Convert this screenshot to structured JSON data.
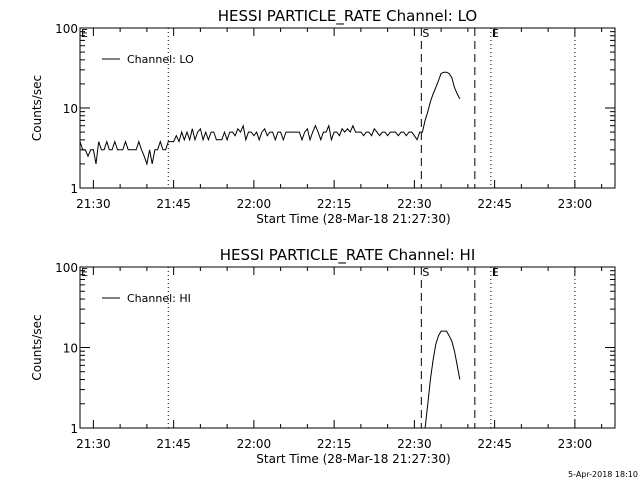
{
  "footer": {
    "timestamp": "5-Apr-2018 18:10"
  },
  "chart_data": [
    {
      "type": "line",
      "title": "HESSI PARTICLE_RATE Channel: LO",
      "xlabel": "Start Time (28-Mar-18 21:27:30)",
      "ylabel": "Counts/sec",
      "y_scale": "log",
      "ylim": [
        1,
        100
      ],
      "y_ticks": [
        "1",
        "10",
        "100"
      ],
      "x_unit": "minutes since 21:27:30",
      "xlim": [
        0,
        100
      ],
      "x_ticks": [
        {
          "label": "21:30",
          "value": 2.5
        },
        {
          "label": "21:45",
          "value": 17.5
        },
        {
          "label": "22:00",
          "value": 32.5
        },
        {
          "label": "22:15",
          "value": 47.5
        },
        {
          "label": "22:30",
          "value": 62.5
        },
        {
          "label": "22:45",
          "value": 77.5
        },
        {
          "label": "23:00",
          "value": 92.5
        }
      ],
      "legend": {
        "label": "Channel: LO",
        "position": "top-left"
      },
      "markers": [
        {
          "label": "E",
          "x": 0,
          "style": "none"
        },
        {
          "label": "",
          "x": 16.5,
          "style": "dotted"
        },
        {
          "label": "S",
          "x": 63.8,
          "style": "dashed"
        },
        {
          "label": "",
          "x": 73.8,
          "style": "dashed"
        },
        {
          "label": "E",
          "x": 76.8,
          "style": "dotted"
        },
        {
          "label": "",
          "x": 92.5,
          "style": "dotted"
        }
      ],
      "series": [
        {
          "name": "Channel: LO",
          "points": [
            [
              0.0,
              3.8
            ],
            [
              0.5,
              3.0
            ],
            [
              1.0,
              3.0
            ],
            [
              1.5,
              2.5
            ],
            [
              2.0,
              3.0
            ],
            [
              2.5,
              3.0
            ],
            [
              3.0,
              2.0
            ],
            [
              3.5,
              3.8
            ],
            [
              4.0,
              3.0
            ],
            [
              4.5,
              3.0
            ],
            [
              5.0,
              3.8
            ],
            [
              5.5,
              3.0
            ],
            [
              6.0,
              3.0
            ],
            [
              6.5,
              3.8
            ],
            [
              7.0,
              3.0
            ],
            [
              7.5,
              3.0
            ],
            [
              8.0,
              3.0
            ],
            [
              8.5,
              3.8
            ],
            [
              9.0,
              3.0
            ],
            [
              9.5,
              3.0
            ],
            [
              10.0,
              3.0
            ],
            [
              10.5,
              3.0
            ],
            [
              11.0,
              3.8
            ],
            [
              11.5,
              3.0
            ],
            [
              12.0,
              2.5
            ],
            [
              12.5,
              2.0
            ],
            [
              13.0,
              3.0
            ],
            [
              13.5,
              2.0
            ],
            [
              14.0,
              3.0
            ],
            [
              14.5,
              3.0
            ],
            [
              15.0,
              3.8
            ],
            [
              15.5,
              3.0
            ],
            [
              16.0,
              3.0
            ],
            [
              16.5,
              3.8
            ],
            [
              17.0,
              3.8
            ],
            [
              17.5,
              3.8
            ],
            [
              18.0,
              4.5
            ],
            [
              18.5,
              3.8
            ],
            [
              19.0,
              5.0
            ],
            [
              19.5,
              4.0
            ],
            [
              20.0,
              5.0
            ],
            [
              20.5,
              4.0
            ],
            [
              21.0,
              5.5
            ],
            [
              21.5,
              4.0
            ],
            [
              22.0,
              5.0
            ],
            [
              22.5,
              5.5
            ],
            [
              23.0,
              4.0
            ],
            [
              23.5,
              5.0
            ],
            [
              24.0,
              4.0
            ],
            [
              24.5,
              5.0
            ],
            [
              25.0,
              5.0
            ],
            [
              25.5,
              4.0
            ],
            [
              26.0,
              4.0
            ],
            [
              26.5,
              4.0
            ],
            [
              27.0,
              5.0
            ],
            [
              27.5,
              4.0
            ],
            [
              28.0,
              5.0
            ],
            [
              28.5,
              5.0
            ],
            [
              29.0,
              4.5
            ],
            [
              29.5,
              5.5
            ],
            [
              30.0,
              5.0
            ],
            [
              30.5,
              6.0
            ],
            [
              31.0,
              4.0
            ],
            [
              31.5,
              5.0
            ],
            [
              32.0,
              5.0
            ],
            [
              32.5,
              4.5
            ],
            [
              33.0,
              5.0
            ],
            [
              33.5,
              4.0
            ],
            [
              34.0,
              5.0
            ],
            [
              34.5,
              5.5
            ],
            [
              35.0,
              4.5
            ],
            [
              35.5,
              5.0
            ],
            [
              36.0,
              5.0
            ],
            [
              36.5,
              4.0
            ],
            [
              37.0,
              5.0
            ],
            [
              37.5,
              5.0
            ],
            [
              38.0,
              4.0
            ],
            [
              38.5,
              5.0
            ],
            [
              39.0,
              5.0
            ],
            [
              39.5,
              5.0
            ],
            [
              40.0,
              5.0
            ],
            [
              40.5,
              5.0
            ],
            [
              41.0,
              5.0
            ],
            [
              41.5,
              4.0
            ],
            [
              42.0,
              5.0
            ],
            [
              42.5,
              5.5
            ],
            [
              43.0,
              4.0
            ],
            [
              43.5,
              5.0
            ],
            [
              44.0,
              6.0
            ],
            [
              44.5,
              5.0
            ],
            [
              45.0,
              4.0
            ],
            [
              45.5,
              5.0
            ],
            [
              46.0,
              5.0
            ],
            [
              46.5,
              6.0
            ],
            [
              47.0,
              4.0
            ],
            [
              47.5,
              5.0
            ],
            [
              48.0,
              5.0
            ],
            [
              48.5,
              4.5
            ],
            [
              49.0,
              5.5
            ],
            [
              49.5,
              5.0
            ],
            [
              50.0,
              5.5
            ],
            [
              50.5,
              5.0
            ],
            [
              51.0,
              6.0
            ],
            [
              51.5,
              5.0
            ],
            [
              52.0,
              5.0
            ],
            [
              52.5,
              5.0
            ],
            [
              53.0,
              4.5
            ],
            [
              53.5,
              5.0
            ],
            [
              54.0,
              5.0
            ],
            [
              54.5,
              4.5
            ],
            [
              55.0,
              5.5
            ],
            [
              55.5,
              5.0
            ],
            [
              56.0,
              4.5
            ],
            [
              56.5,
              5.0
            ],
            [
              57.0,
              5.0
            ],
            [
              57.5,
              4.5
            ],
            [
              58.0,
              5.0
            ],
            [
              58.5,
              5.0
            ],
            [
              59.0,
              5.0
            ],
            [
              59.5,
              4.5
            ],
            [
              60.0,
              5.0
            ],
            [
              60.5,
              5.0
            ],
            [
              61.0,
              4.5
            ],
            [
              61.5,
              5.0
            ],
            [
              62.0,
              5.0
            ],
            [
              62.5,
              4.5
            ],
            [
              63.0,
              4.0
            ],
            [
              63.5,
              5.0
            ],
            [
              64.0,
              5.0
            ],
            [
              64.5,
              7.0
            ],
            [
              65.0,
              9.0
            ],
            [
              65.5,
              12.0
            ],
            [
              66.0,
              15.0
            ],
            [
              66.5,
              18.0
            ],
            [
              67.0,
              22.0
            ],
            [
              67.5,
              27.0
            ],
            [
              68.0,
              28.0
            ],
            [
              68.5,
              28.0
            ],
            [
              69.0,
              27.0
            ],
            [
              69.5,
              24.0
            ],
            [
              70.0,
              18.0
            ],
            [
              70.5,
              15.0
            ],
            [
              71.0,
              13.0
            ]
          ]
        }
      ]
    },
    {
      "type": "line",
      "title": "HESSI PARTICLE_RATE Channel: HI",
      "xlabel": "Start Time (28-Mar-18 21:27:30)",
      "ylabel": "Counts/sec",
      "y_scale": "log",
      "ylim": [
        1,
        100
      ],
      "y_ticks": [
        "1",
        "10",
        "100"
      ],
      "x_unit": "minutes since 21:27:30",
      "xlim": [
        0,
        100
      ],
      "x_ticks": [
        {
          "label": "21:30",
          "value": 2.5
        },
        {
          "label": "21:45",
          "value": 17.5
        },
        {
          "label": "22:00",
          "value": 32.5
        },
        {
          "label": "22:15",
          "value": 47.5
        },
        {
          "label": "22:30",
          "value": 62.5
        },
        {
          "label": "22:45",
          "value": 77.5
        },
        {
          "label": "23:00",
          "value": 92.5
        }
      ],
      "legend": {
        "label": "Channel: HI",
        "position": "top-left"
      },
      "markers": [
        {
          "label": "E",
          "x": 0,
          "style": "none"
        },
        {
          "label": "",
          "x": 16.5,
          "style": "dotted"
        },
        {
          "label": "S",
          "x": 63.8,
          "style": "dashed"
        },
        {
          "label": "",
          "x": 73.8,
          "style": "dashed"
        },
        {
          "label": "E",
          "x": 76.8,
          "style": "dotted"
        },
        {
          "label": "",
          "x": 92.5,
          "style": "dotted"
        }
      ],
      "series": [
        {
          "name": "Channel: HI",
          "points": [
            [
              64.5,
              1.0
            ],
            [
              65.0,
              2.0
            ],
            [
              65.5,
              4.0
            ],
            [
              66.0,
              7.0
            ],
            [
              66.5,
              11.0
            ],
            [
              67.0,
              14.0
            ],
            [
              67.5,
              16.0
            ],
            [
              68.0,
              16.0
            ],
            [
              68.5,
              16.0
            ],
            [
              69.0,
              14.0
            ],
            [
              69.5,
              12.0
            ],
            [
              70.0,
              9.0
            ],
            [
              70.5,
              6.0
            ],
            [
              71.0,
              4.0
            ]
          ]
        }
      ]
    }
  ]
}
